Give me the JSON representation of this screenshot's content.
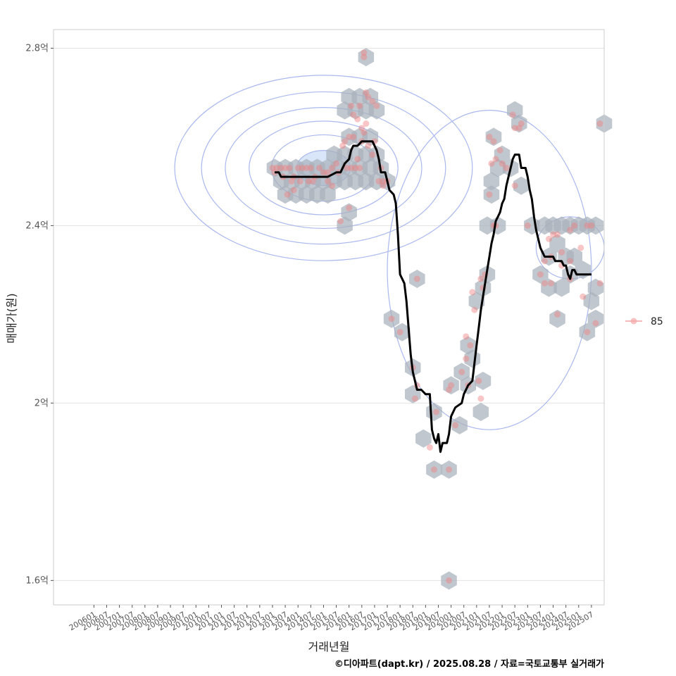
{
  "chart_data": {
    "type": "scatter",
    "title": "",
    "xlabel": "거래년월",
    "ylabel": "매매가(원)",
    "caption": "©디아파트(dapt.kr) / 2025.08.28 / 자료=국토교통부 실거래가",
    "x_tick_labels": [
      "200601",
      "200607",
      "200701",
      "200707",
      "200801",
      "200807",
      "200901",
      "200907",
      "201001",
      "201007",
      "201101",
      "201107",
      "201201",
      "201207",
      "201301",
      "201307",
      "201401",
      "201407",
      "201501",
      "201507",
      "201601",
      "201607",
      "201701",
      "201707",
      "201801",
      "201807",
      "201901",
      "201907",
      "202001",
      "202007",
      "202101",
      "202107",
      "202201",
      "202207",
      "202301",
      "202307",
      "202401",
      "202407",
      "202501",
      "202507"
    ],
    "y_ticks": [
      {
        "value": 1.6,
        "label": "1.6억"
      },
      {
        "value": 2.0,
        "label": "2억"
      },
      {
        "value": 2.4,
        "label": "2.4억"
      },
      {
        "value": 2.8,
        "label": "2.8억"
      }
    ],
    "x_range_months": [
      -19,
      240
    ],
    "y_range_eok": [
      1.545,
      2.842
    ],
    "legend": [
      {
        "label": "85",
        "color": "#f4a6a6"
      }
    ],
    "colors": {
      "point": "#f08080",
      "hex": "#a9b2bb",
      "density": "#aab8ee",
      "density_fill": "#cfe0f7",
      "trend": "#000000",
      "panel_border": "#cccccc",
      "grid": "#e3e3e3"
    },
    "points": [
      [
        84,
        2.53
      ],
      [
        86,
        2.53
      ],
      [
        88,
        2.53
      ],
      [
        90,
        2.53
      ],
      [
        92,
        2.53
      ],
      [
        94,
        2.51
      ],
      [
        96,
        2.53
      ],
      [
        98,
        2.53
      ],
      [
        100,
        2.53
      ],
      [
        102,
        2.53
      ],
      [
        104,
        2.51
      ],
      [
        106,
        2.53
      ],
      [
        108,
        2.52
      ],
      [
        110,
        2.52
      ],
      [
        112,
        2.53
      ],
      [
        114,
        2.54
      ],
      [
        85,
        2.52
      ],
      [
        89,
        2.51
      ],
      [
        93,
        2.5
      ],
      [
        97,
        2.5
      ],
      [
        103,
        2.5
      ],
      [
        110,
        2.5
      ],
      [
        112,
        2.49
      ],
      [
        94,
        2.48
      ],
      [
        91,
        2.47
      ],
      [
        101,
        2.5
      ],
      [
        115,
        2.52
      ],
      [
        117,
        2.58
      ],
      [
        118,
        2.59
      ],
      [
        120,
        2.6
      ],
      [
        122,
        2.6
      ],
      [
        124,
        2.55
      ],
      [
        119,
        2.53
      ],
      [
        121,
        2.53
      ],
      [
        123,
        2.53
      ],
      [
        125,
        2.53
      ],
      [
        126,
        2.59
      ],
      [
        129,
        2.58
      ],
      [
        131,
        2.56
      ],
      [
        127,
        2.61
      ],
      [
        128,
        2.63
      ],
      [
        124,
        2.64
      ],
      [
        125,
        2.67
      ],
      [
        121,
        2.67
      ],
      [
        122,
        2.65
      ],
      [
        129,
        2.69
      ],
      [
        128,
        2.7
      ],
      [
        131,
        2.68
      ],
      [
        133,
        2.67
      ],
      [
        126,
        2.62
      ],
      [
        127,
        2.79
      ],
      [
        127,
        2.78
      ],
      [
        132,
        2.59
      ],
      [
        134,
        2.5
      ],
      [
        136,
        2.49
      ],
      [
        136,
        2.5
      ],
      [
        138,
        2.5
      ],
      [
        135,
        2.53
      ],
      [
        120,
        2.44
      ],
      [
        116,
        2.41
      ],
      [
        152,
        2.28
      ],
      [
        140,
        2.19
      ],
      [
        144,
        2.16
      ],
      [
        150,
        2.08
      ],
      [
        152,
        2.04
      ],
      [
        151,
        2.01
      ],
      [
        161,
        1.98
      ],
      [
        160,
        1.85
      ],
      [
        167,
        1.85
      ],
      [
        158,
        1.9
      ],
      [
        170,
        1.95
      ],
      [
        168,
        2.04
      ],
      [
        167,
        2.03
      ],
      [
        175,
        2.1
      ],
      [
        173,
        2.07
      ],
      [
        176,
        2.04
      ],
      [
        177,
        2.13
      ],
      [
        175,
        2.15
      ],
      [
        181,
        2.05
      ],
      [
        182,
        2.01
      ],
      [
        178,
        2.25
      ],
      [
        179,
        2.21
      ],
      [
        183,
        2.26
      ],
      [
        184,
        2.29
      ],
      [
        182,
        2.28
      ],
      [
        188,
        2.4
      ],
      [
        189,
        2.4
      ],
      [
        186,
        2.47
      ],
      [
        187,
        2.54
      ],
      [
        189,
        2.55
      ],
      [
        191,
        2.57
      ],
      [
        186,
        2.6
      ],
      [
        188,
        2.59
      ],
      [
        192,
        2.54
      ],
      [
        194,
        2.53
      ],
      [
        197,
        2.65
      ],
      [
        198,
        2.62
      ],
      [
        198,
        2.49
      ],
      [
        200,
        2.62
      ],
      [
        201,
        2.63
      ],
      [
        204,
        2.4
      ],
      [
        210,
        2.29
      ],
      [
        212,
        2.27
      ],
      [
        212,
        2.32
      ],
      [
        215,
        2.27
      ],
      [
        215,
        2.33
      ],
      [
        216,
        2.38
      ],
      [
        218,
        2.38
      ],
      [
        214,
        2.37
      ],
      [
        220,
        2.34
      ],
      [
        220,
        2.31
      ],
      [
        224,
        2.39
      ],
      [
        226,
        2.4
      ],
      [
        229,
        2.35
      ],
      [
        232,
        2.4
      ],
      [
        234,
        2.4
      ],
      [
        230,
        2.24
      ],
      [
        232,
        2.16
      ],
      [
        236,
        2.18
      ],
      [
        238,
        2.27
      ],
      [
        238,
        2.63
      ],
      [
        224,
        2.28
      ],
      [
        218,
        2.2
      ],
      [
        224,
        2.32
      ],
      [
        167,
        1.6
      ]
    ],
    "hexbins": [
      [
        85,
        2.53
      ],
      [
        90,
        2.53
      ],
      [
        95,
        2.53
      ],
      [
        100,
        2.53
      ],
      [
        105,
        2.53
      ],
      [
        110,
        2.53
      ],
      [
        115,
        2.53
      ],
      [
        120,
        2.53
      ],
      [
        125,
        2.53
      ],
      [
        130,
        2.53
      ],
      [
        135,
        2.53
      ],
      [
        88,
        2.5
      ],
      [
        93,
        2.5
      ],
      [
        98,
        2.5
      ],
      [
        103,
        2.5
      ],
      [
        108,
        2.5
      ],
      [
        113,
        2.5
      ],
      [
        118,
        2.5
      ],
      [
        123,
        2.5
      ],
      [
        128,
        2.5
      ],
      [
        133,
        2.5
      ],
      [
        138,
        2.5
      ],
      [
        90,
        2.47
      ],
      [
        95,
        2.47
      ],
      [
        100,
        2.47
      ],
      [
        105,
        2.47
      ],
      [
        110,
        2.47
      ],
      [
        133,
        2.56
      ],
      [
        128,
        2.56
      ],
      [
        123,
        2.56
      ],
      [
        118,
        2.56
      ],
      [
        113,
        2.56
      ],
      [
        120,
        2.6
      ],
      [
        125,
        2.6
      ],
      [
        130,
        2.6
      ],
      [
        118,
        2.66
      ],
      [
        123,
        2.66
      ],
      [
        128,
        2.66
      ],
      [
        133,
        2.66
      ],
      [
        120,
        2.69
      ],
      [
        125,
        2.69
      ],
      [
        130,
        2.69
      ],
      [
        128,
        2.78
      ],
      [
        120,
        2.43
      ],
      [
        118,
        2.4
      ],
      [
        152,
        2.28
      ],
      [
        140,
        2.19
      ],
      [
        145,
        2.16
      ],
      [
        150,
        2.08
      ],
      [
        150,
        2.02
      ],
      [
        160,
        1.98
      ],
      [
        155,
        1.92
      ],
      [
        160,
        1.85
      ],
      [
        167,
        1.85
      ],
      [
        167,
        1.6
      ],
      [
        168,
        2.04
      ],
      [
        173,
        2.07
      ],
      [
        176,
        2.04
      ],
      [
        172,
        1.95
      ],
      [
        178,
        2.1
      ],
      [
        176,
        2.13
      ],
      [
        183,
        2.05
      ],
      [
        182,
        1.98
      ],
      [
        180,
        2.23
      ],
      [
        183,
        2.26
      ],
      [
        185,
        2.29
      ],
      [
        185,
        2.4
      ],
      [
        190,
        2.4
      ],
      [
        187,
        2.47
      ],
      [
        187,
        2.5
      ],
      [
        190,
        2.53
      ],
      [
        192,
        2.56
      ],
      [
        188,
        2.6
      ],
      [
        198,
        2.66
      ],
      [
        200,
        2.63
      ],
      [
        196,
        2.53
      ],
      [
        201,
        2.49
      ],
      [
        206,
        2.4
      ],
      [
        212,
        2.4
      ],
      [
        216,
        2.4
      ],
      [
        220,
        2.4
      ],
      [
        224,
        2.4
      ],
      [
        228,
        2.4
      ],
      [
        232,
        2.4
      ],
      [
        236,
        2.4
      ],
      [
        210,
        2.29
      ],
      [
        214,
        2.33
      ],
      [
        218,
        2.36
      ],
      [
        222,
        2.33
      ],
      [
        226,
        2.33
      ],
      [
        230,
        2.3
      ],
      [
        214,
        2.26
      ],
      [
        220,
        2.26
      ],
      [
        224,
        2.29
      ],
      [
        218,
        2.19
      ],
      [
        234,
        2.23
      ],
      [
        236,
        2.26
      ],
      [
        236,
        2.19
      ],
      [
        232,
        2.16
      ],
      [
        240,
        2.63
      ]
    ],
    "trend": [
      [
        85,
        2.52
      ],
      [
        87,
        2.52
      ],
      [
        88,
        2.51
      ],
      [
        92,
        2.51
      ],
      [
        96,
        2.51
      ],
      [
        100,
        2.51
      ],
      [
        104,
        2.51
      ],
      [
        108,
        2.51
      ],
      [
        110,
        2.51
      ],
      [
        114,
        2.52
      ],
      [
        116,
        2.52
      ],
      [
        118,
        2.54
      ],
      [
        120,
        2.55
      ],
      [
        121,
        2.57
      ],
      [
        122,
        2.58
      ],
      [
        124,
        2.58
      ],
      [
        126,
        2.59
      ],
      [
        128,
        2.59
      ],
      [
        130,
        2.59
      ],
      [
        131,
        2.59
      ],
      [
        132,
        2.58
      ],
      [
        133,
        2.57
      ],
      [
        134,
        2.55
      ],
      [
        135,
        2.52
      ],
      [
        137,
        2.52
      ],
      [
        139,
        2.48
      ],
      [
        141,
        2.47
      ],
      [
        142,
        2.45
      ],
      [
        143,
        2.38
      ],
      [
        144,
        2.29
      ],
      [
        146,
        2.27
      ],
      [
        147,
        2.23
      ],
      [
        148,
        2.17
      ],
      [
        149,
        2.11
      ],
      [
        150,
        2.07
      ],
      [
        151,
        2.05
      ],
      [
        152,
        2.03
      ],
      [
        154,
        2.03
      ],
      [
        156,
        2.02
      ],
      [
        158,
        2.02
      ],
      [
        159,
        1.94
      ],
      [
        160,
        1.92
      ],
      [
        161,
        1.91
      ],
      [
        162,
        1.93
      ],
      [
        163,
        1.89
      ],
      [
        164,
        1.91
      ],
      [
        166,
        1.91
      ],
      [
        167,
        1.93
      ],
      [
        168,
        1.97
      ],
      [
        170,
        1.99
      ],
      [
        173,
        2.0
      ],
      [
        174,
        2.02
      ],
      [
        176,
        2.04
      ],
      [
        178,
        2.05
      ],
      [
        179,
        2.09
      ],
      [
        180,
        2.13
      ],
      [
        181,
        2.17
      ],
      [
        182,
        2.21
      ],
      [
        183,
        2.24
      ],
      [
        184,
        2.27
      ],
      [
        185,
        2.3
      ],
      [
        186,
        2.33
      ],
      [
        187,
        2.36
      ],
      [
        188,
        2.38
      ],
      [
        189,
        2.41
      ],
      [
        191,
        2.43
      ],
      [
        192,
        2.45
      ],
      [
        193,
        2.46
      ],
      [
        194,
        2.49
      ],
      [
        195,
        2.51
      ],
      [
        196,
        2.53
      ],
      [
        197,
        2.55
      ],
      [
        198,
        2.56
      ],
      [
        199,
        2.56
      ],
      [
        200,
        2.56
      ],
      [
        201,
        2.53
      ],
      [
        202,
        2.53
      ],
      [
        203,
        2.53
      ],
      [
        204,
        2.51
      ],
      [
        205,
        2.48
      ],
      [
        206,
        2.46
      ],
      [
        207,
        2.42
      ],
      [
        208,
        2.39
      ],
      [
        209,
        2.37
      ],
      [
        210,
        2.35
      ],
      [
        211,
        2.34
      ],
      [
        212,
        2.33
      ],
      [
        214,
        2.33
      ],
      [
        216,
        2.33
      ],
      [
        217,
        2.32
      ],
      [
        218,
        2.32
      ],
      [
        220,
        2.32
      ],
      [
        221,
        2.31
      ],
      [
        222,
        2.31
      ],
      [
        223,
        2.29
      ],
      [
        224,
        2.28
      ],
      [
        225,
        2.3
      ],
      [
        226,
        2.3
      ],
      [
        227,
        2.29
      ],
      [
        228,
        2.29
      ],
      [
        230,
        2.29
      ],
      [
        232,
        2.29
      ],
      [
        234,
        2.29
      ]
    ]
  }
}
